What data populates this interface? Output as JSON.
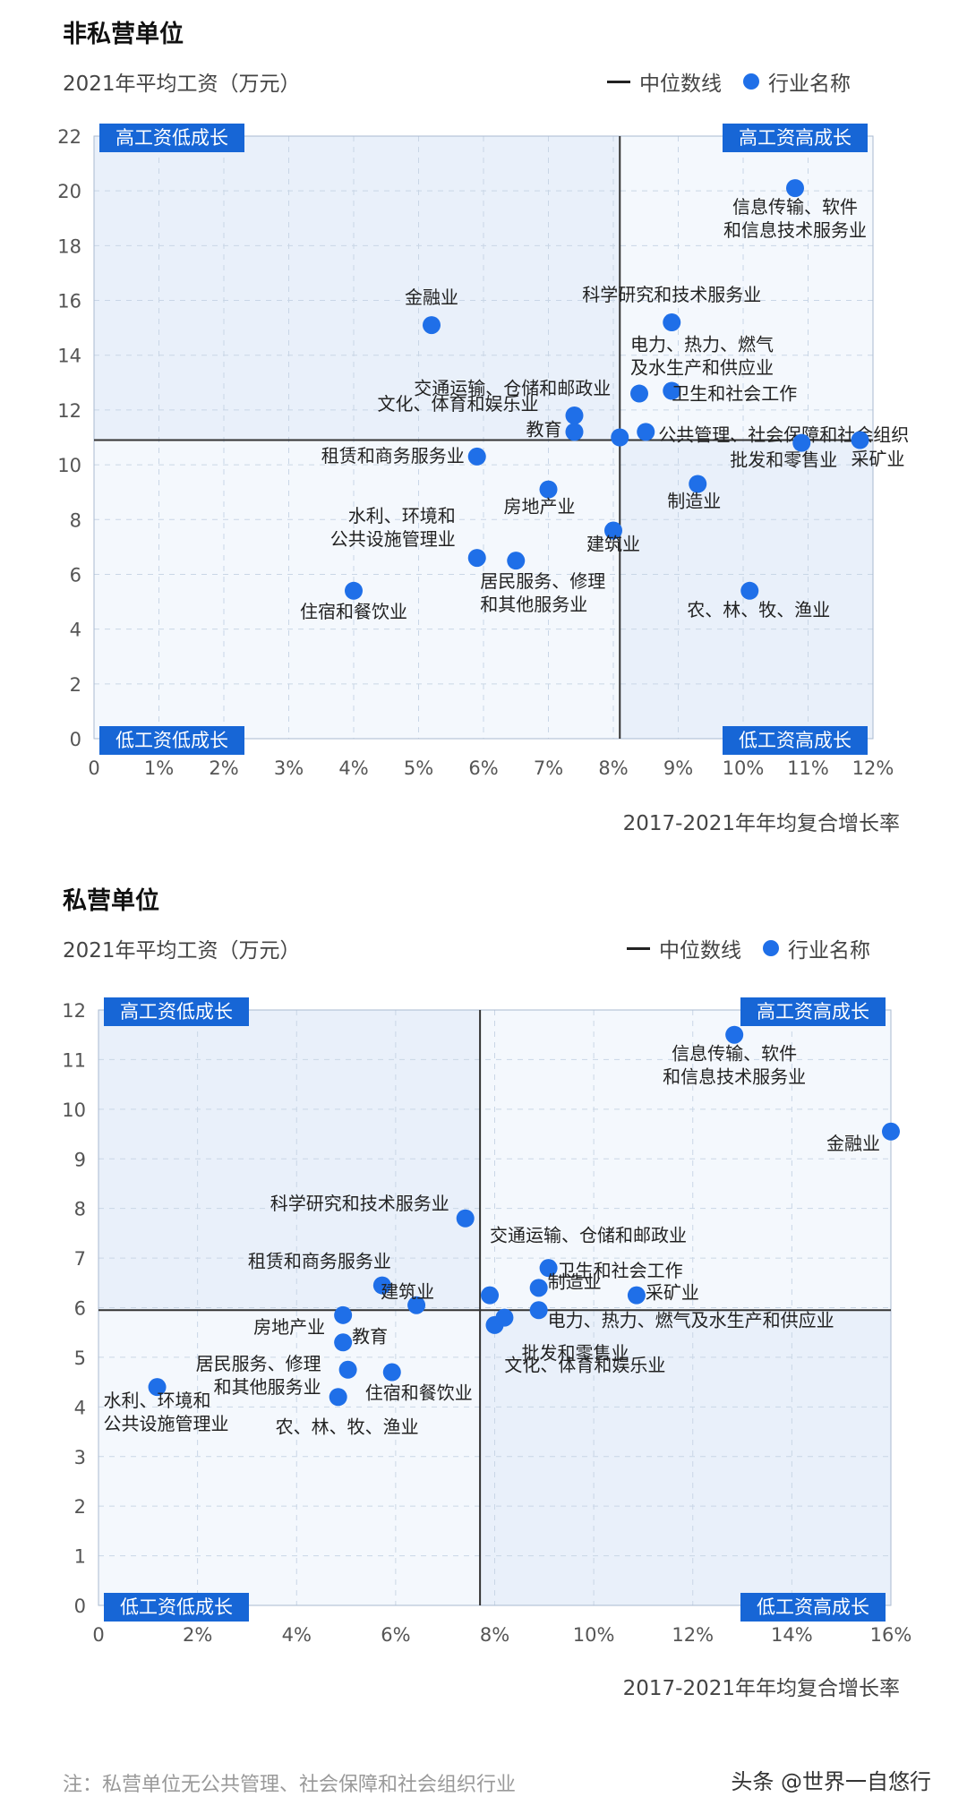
{
  "chart_data": [
    {
      "type": "scatter",
      "title": "非私营单位",
      "ylabel": "2021年平均工资（万元）",
      "xlabel": "2017-2021年年均复合增长率",
      "legend": {
        "median": "中位数线",
        "points": "行业名称"
      },
      "xticks": [
        "0",
        "1%",
        "2%",
        "3%",
        "4%",
        "5%",
        "6%",
        "7%",
        "8%",
        "9%",
        "10%",
        "11%",
        "12%"
      ],
      "yticks": [
        "0",
        "2",
        "4",
        "6",
        "8",
        "10",
        "12",
        "14",
        "16",
        "18",
        "20",
        "22"
      ],
      "xlim": [
        0,
        12
      ],
      "ylim": [
        0,
        22
      ],
      "median": {
        "x": 8.1,
        "y": 10.9
      },
      "quadrants": {
        "tl": "高工资低成长",
        "tr": "高工资高成长",
        "bl": "低工资低成长",
        "br": "低工资高成长"
      },
      "points": [
        {
          "name": "信息传输、软件\n和信息技术服务业",
          "x": 10.8,
          "y": 20.1
        },
        {
          "name": "科学研究和技术服务业",
          "x": 8.9,
          "y": 15.2
        },
        {
          "name": "金融业",
          "x": 5.2,
          "y": 15.1
        },
        {
          "name": "电力、热力、燃气\n及水生产和供应业",
          "x": 8.4,
          "y": 12.6
        },
        {
          "name": "卫生和社会工作",
          "x": 8.9,
          "y": 12.7
        },
        {
          "name": "交通运输、仓储和邮政业",
          "x": 8.1,
          "y": 11.0
        },
        {
          "name": "文化、体育和娱乐业",
          "x": 7.4,
          "y": 11.8
        },
        {
          "name": "教育",
          "x": 7.4,
          "y": 11.2
        },
        {
          "name": "公共管理、社会保障和社会组织",
          "x": 8.5,
          "y": 11.2
        },
        {
          "name": "采矿业",
          "x": 11.8,
          "y": 10.9
        },
        {
          "name": "批发和零售业",
          "x": 10.9,
          "y": 10.8
        },
        {
          "name": "租赁和商务服务业",
          "x": 5.9,
          "y": 10.3
        },
        {
          "name": "制造业",
          "x": 9.3,
          "y": 9.3
        },
        {
          "name": "房地产业",
          "x": 7.0,
          "y": 9.1
        },
        {
          "name": "建筑业",
          "x": 8.0,
          "y": 7.6
        },
        {
          "name": "水利、环境和\n公共设施管理业",
          "x": 5.9,
          "y": 6.6
        },
        {
          "name": "居民服务、修理\n和其他服务业",
          "x": 6.5,
          "y": 6.5
        },
        {
          "name": "住宿和餐饮业",
          "x": 4.0,
          "y": 5.4
        },
        {
          "name": "农、林、牧、渔业",
          "x": 10.1,
          "y": 5.4
        }
      ]
    },
    {
      "type": "scatter",
      "title": "私营单位",
      "ylabel": "2021年平均工资（万元）",
      "xlabel": "2017-2021年年均复合增长率",
      "legend": {
        "median": "中位数线",
        "points": "行业名称"
      },
      "xticks": [
        "0",
        "2%",
        "4%",
        "6%",
        "8%",
        "10%",
        "12%",
        "14%",
        "16%"
      ],
      "yticks": [
        "0",
        "1",
        "2",
        "3",
        "4",
        "5",
        "6",
        "7",
        "8",
        "9",
        "10",
        "11",
        "12"
      ],
      "xlim": [
        0,
        16.2
      ],
      "ylim": [
        0,
        12
      ],
      "median": {
        "x": 7.8,
        "y": 5.95
      },
      "quadrants": {
        "tl": "高工资低成长",
        "tr": "高工资高成长",
        "bl": "低工资低成长",
        "br": "低工资高成长"
      },
      "points": [
        {
          "name": "信息传输、软件\n和信息技术服务业",
          "x": 13.0,
          "y": 11.5
        },
        {
          "name": "金融业",
          "x": 16.2,
          "y": 9.55
        },
        {
          "name": "科学研究和技术服务业",
          "x": 7.5,
          "y": 7.8
        },
        {
          "name": "交通运输、仓储和邮政业",
          "x": 8.0,
          "y": 6.25
        },
        {
          "name": "卫生和社会工作",
          "x": 9.2,
          "y": 6.8
        },
        {
          "name": "制造业",
          "x": 9.0,
          "y": 6.4
        },
        {
          "name": "采矿业",
          "x": 11.0,
          "y": 6.25
        },
        {
          "name": "租赁和商务服务业",
          "x": 5.8,
          "y": 6.45
        },
        {
          "name": "建筑业",
          "x": 6.5,
          "y": 6.05
        },
        {
          "name": "电力、热力、燃气及水生产和供应业",
          "x": 9.0,
          "y": 5.95
        },
        {
          "name": "房地产业",
          "x": 5.0,
          "y": 5.85
        },
        {
          "name": "批发和零售业",
          "x": 8.1,
          "y": 5.65
        },
        {
          "name": "文化、体育和娱乐业",
          "x": 8.3,
          "y": 5.8
        },
        {
          "name": "教育",
          "x": 5.0,
          "y": 5.3
        },
        {
          "name": "居民服务、修理\n和其他服务业",
          "x": 5.1,
          "y": 4.75
        },
        {
          "name": "住宿和餐饮业",
          "x": 6.0,
          "y": 4.7
        },
        {
          "name": "农、林、牧、渔业",
          "x": 4.9,
          "y": 4.2
        },
        {
          "name": "水利、环境和\n公共设施管理业",
          "x": 1.2,
          "y": 4.4
        }
      ]
    }
  ],
  "note": "注：私营单位无公共管理、社会保障和社会组织行业",
  "watermark": "头条 @世界一自悠行",
  "colors": {
    "dot": "#1f6fe8",
    "badge": "#1766d6",
    "plot_bg": "#eef4fc",
    "grid": "#c9d6e6",
    "median": "#333333"
  }
}
